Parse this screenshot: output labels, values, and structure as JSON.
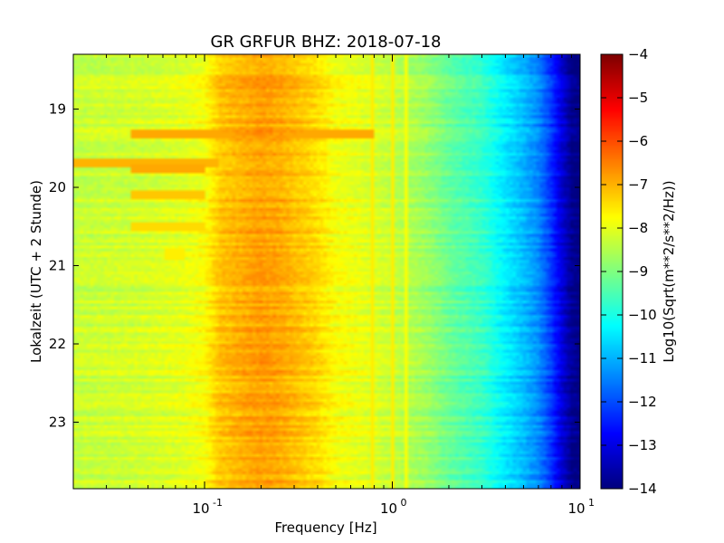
{
  "chart_data": {
    "type": "heatmap",
    "title": "GR GRFUR BHZ: 2018-07-18",
    "xlabel": "Frequency [Hz]",
    "ylabel": "Lokalzeit (UTC + 2 Stunde)",
    "x_scale": "log",
    "xlim": [
      0.02,
      10
    ],
    "ylim": [
      18.3,
      23.85
    ],
    "y_inverted": true,
    "x_ticks": [
      {
        "value": 0.1,
        "base": "10",
        "exp": "-1"
      },
      {
        "value": 1,
        "base": "10",
        "exp": "0"
      },
      {
        "value": 10,
        "base": "10",
        "exp": "1"
      }
    ],
    "y_ticks": [
      19,
      20,
      21,
      22,
      23
    ],
    "colorbar": {
      "label": "Log10(Sqrt(m**2/s**2/Hz))",
      "min": -14,
      "max": -4,
      "ticks": [
        -4,
        -5,
        -6,
        -7,
        -8,
        -9,
        -10,
        -11,
        -12,
        -13,
        -14
      ],
      "colormap": "jet"
    },
    "spectrum_profile": {
      "frequency_hz": [
        0.02,
        0.04,
        0.06,
        0.08,
        0.1,
        0.12,
        0.15,
        0.2,
        0.25,
        0.3,
        0.4,
        0.5,
        0.7,
        1.0,
        1.5,
        2.0,
        3.0,
        4.0,
        5.0,
        6.0,
        7.0,
        8.0,
        9.0,
        10.0
      ],
      "log10_amplitude": [
        -8.3,
        -8.2,
        -8.1,
        -8.0,
        -7.8,
        -7.2,
        -7.0,
        -6.8,
        -6.9,
        -7.1,
        -7.4,
        -7.8,
        -8.0,
        -8.3,
        -8.7,
        -9.2,
        -9.7,
        -10.4,
        -10.9,
        -11.4,
        -12.2,
        -13.1,
        -13.8,
        -14.0
      ]
    },
    "events": [
      {
        "time": 19.33,
        "fmin": 0.04,
        "fmax": 0.8,
        "log10_amplitude": -6.9
      },
      {
        "time": 19.7,
        "fmin": 0.02,
        "fmax": 0.12,
        "log10_amplitude": -7.0
      },
      {
        "time": 19.75,
        "fmin": 0.04,
        "fmax": 0.1,
        "log10_amplitude": -6.9
      },
      {
        "time": 20.1,
        "fmin": 0.04,
        "fmax": 0.1,
        "log10_amplitude": -7.2
      },
      {
        "time": 20.5,
        "fmin": 0.04,
        "fmax": 0.1,
        "log10_amplitude": -7.4
      },
      {
        "time": 20.85,
        "fmin": 0.06,
        "fmax": 0.08,
        "log10_amplitude": -7.6
      }
    ],
    "lines": [
      {
        "frequency_hz": 0.78,
        "log10_amplitude": -7.6
      },
      {
        "frequency_hz": 1.0,
        "log10_amplitude": -7.6
      },
      {
        "frequency_hz": 1.2,
        "log10_amplitude": -7.8
      }
    ],
    "grid": false
  }
}
